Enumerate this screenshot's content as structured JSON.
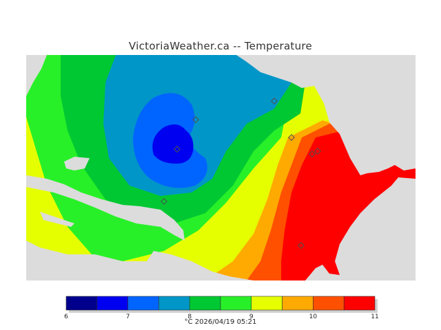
{
  "title": "VictoriaWeather.ca -- Temperature",
  "legend": {
    "ticks": [
      "6",
      "7",
      "8",
      "9",
      "10",
      "11"
    ],
    "colors": [
      "#00008c",
      "#0000f0",
      "#0064ff",
      "#0096c8",
      "#00c832",
      "#28f028",
      "#e6ff00",
      "#ffaa00",
      "#ff5000",
      "#ff0000"
    ],
    "caption": "°C  2026/04/19 05:21"
  },
  "map_colors": {
    "land": "#dcdcdc",
    "station": "#505050"
  }
}
